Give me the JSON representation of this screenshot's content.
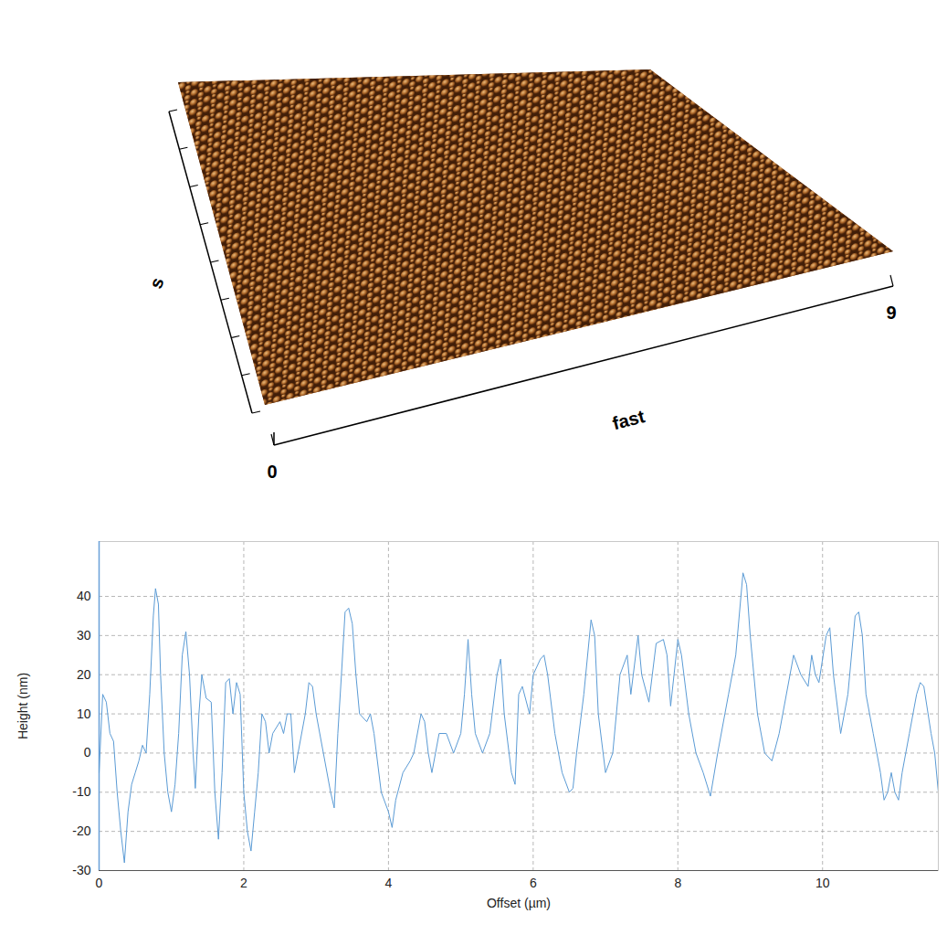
{
  "chart_data": [
    {
      "type": "surface",
      "xlabel": "fast",
      "ylabel": "s",
      "xlim": [
        0,
        9
      ],
      "xticks": [
        0,
        9
      ],
      "color": "#8a4a1c"
    },
    {
      "type": "line",
      "xlabel": "Offset (µm)",
      "ylabel": "Height (nm)",
      "xlim": [
        0,
        11.6
      ],
      "ylim": [
        -30,
        54
      ],
      "xticks": [
        0,
        2,
        4,
        6,
        8,
        10
      ],
      "yticks": [
        -30,
        -20,
        -10,
        0,
        10,
        20,
        30,
        40
      ],
      "grid": true,
      "color": "#5b9bd5",
      "x": [
        0,
        0.05,
        0.1,
        0.15,
        0.2,
        0.25,
        0.3,
        0.35,
        0.4,
        0.45,
        0.5,
        0.55,
        0.6,
        0.65,
        0.7,
        0.75,
        0.78,
        0.82,
        0.85,
        0.9,
        0.95,
        1.0,
        1.05,
        1.1,
        1.15,
        1.2,
        1.25,
        1.3,
        1.33,
        1.38,
        1.42,
        1.48,
        1.55,
        1.6,
        1.65,
        1.7,
        1.75,
        1.8,
        1.85,
        1.9,
        1.95,
        2.0,
        2.05,
        2.1,
        2.15,
        2.2,
        2.25,
        2.3,
        2.35,
        2.4,
        2.5,
        2.55,
        2.6,
        2.65,
        2.7,
        2.75,
        2.85,
        2.9,
        2.95,
        3.0,
        3.1,
        3.2,
        3.25,
        3.3,
        3.35,
        3.4,
        3.45,
        3.5,
        3.55,
        3.6,
        3.7,
        3.75,
        3.8,
        3.9,
        4.0,
        4.05,
        4.1,
        4.2,
        4.3,
        4.35,
        4.45,
        4.5,
        4.55,
        4.6,
        4.7,
        4.8,
        4.9,
        5.0,
        5.05,
        5.1,
        5.15,
        5.2,
        5.3,
        5.4,
        5.5,
        5.55,
        5.6,
        5.7,
        5.75,
        5.8,
        5.85,
        5.95,
        6.0,
        6.1,
        6.15,
        6.2,
        6.3,
        6.4,
        6.5,
        6.55,
        6.6,
        6.7,
        6.8,
        6.85,
        6.9,
        7.0,
        7.1,
        7.2,
        7.3,
        7.35,
        7.45,
        7.5,
        7.6,
        7.7,
        7.8,
        7.85,
        7.9,
        8.0,
        8.05,
        8.15,
        8.25,
        8.35,
        8.45,
        8.55,
        8.65,
        8.7,
        8.8,
        8.9,
        8.95,
        9.0,
        9.1,
        9.2,
        9.3,
        9.4,
        9.45,
        9.55,
        9.6,
        9.7,
        9.8,
        9.85,
        9.9,
        9.95,
        10.05,
        10.1,
        10.15,
        10.25,
        10.35,
        10.45,
        10.5,
        10.55,
        10.6,
        10.7,
        10.8,
        10.85,
        10.9,
        10.95,
        11.0,
        11.05,
        11.1,
        11.2,
        11.3,
        11.35,
        11.4,
        11.5,
        11.55,
        11.6
      ],
      "values": [
        -5,
        15,
        13,
        5,
        3,
        -10,
        -20,
        -28,
        -15,
        -8,
        -5,
        -2,
        2,
        0,
        15,
        35,
        42,
        38,
        20,
        0,
        -10,
        -15,
        -8,
        5,
        25,
        31,
        20,
        0,
        -9,
        10,
        20,
        14,
        13,
        -10,
        -22,
        -5,
        18,
        19,
        10,
        18,
        15,
        -10,
        -20,
        -25,
        -15,
        -5,
        10,
        8,
        0,
        5,
        8,
        5,
        10,
        10,
        -5,
        0,
        10,
        18,
        17,
        10,
        0,
        -10,
        -14,
        5,
        20,
        36,
        37,
        33,
        20,
        10,
        8,
        10,
        5,
        -10,
        -15,
        -19,
        -12,
        -5,
        -2,
        0,
        10,
        8,
        0,
        -5,
        5,
        5,
        0,
        5,
        15,
        29,
        15,
        5,
        0,
        5,
        20,
        24,
        10,
        -5,
        -8,
        15,
        17,
        10,
        20,
        24,
        25,
        20,
        5,
        -5,
        -10,
        -9,
        0,
        15,
        34,
        30,
        10,
        -5,
        0,
        20,
        25,
        15,
        30,
        20,
        13,
        28,
        29,
        25,
        12,
        29,
        25,
        10,
        0,
        -5,
        -11,
        0,
        10,
        15,
        25,
        46,
        43,
        30,
        10,
        0,
        -2,
        5,
        10,
        20,
        25,
        20,
        17,
        25,
        20,
        18,
        30,
        32,
        20,
        5,
        15,
        35,
        36,
        30,
        15,
        5,
        -5,
        -12,
        -10,
        -5,
        -10,
        -12,
        -5,
        5,
        15,
        18,
        17,
        5,
        0,
        -10
      ]
    }
  ]
}
